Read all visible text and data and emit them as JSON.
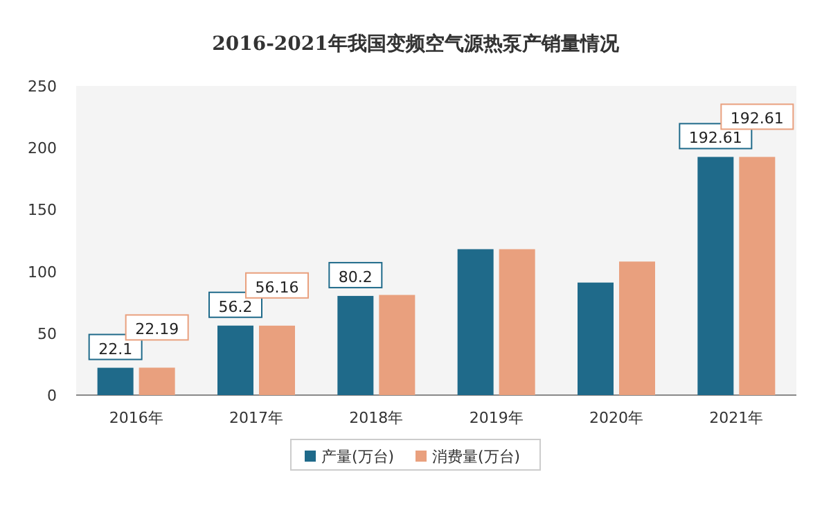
{
  "chart_data": {
    "type": "bar",
    "title": "2016-2021年我国变频空气源热泵产销量情况",
    "categories": [
      "2016年",
      "2017年",
      "2018年",
      "2019年",
      "2020年",
      "2021年"
    ],
    "series": [
      {
        "name": "产量(万台)",
        "color": "#1f6a8a",
        "values": [
          22.1,
          56.2,
          80.2,
          118,
          91,
          192.61
        ],
        "value_labels": [
          "22.1",
          "56.2",
          "80.2",
          null,
          null,
          "192.61"
        ]
      },
      {
        "name": "消费量(万台)",
        "color": "#e9a07e",
        "values": [
          22.19,
          56.16,
          81,
          118,
          108,
          192.61
        ],
        "value_labels": [
          "22.19",
          "56.16",
          null,
          null,
          null,
          "192.61"
        ]
      }
    ],
    "ylim": [
      0,
      250
    ],
    "yticks": [
      0,
      50,
      100,
      150,
      200,
      250
    ],
    "legend": "bottom"
  }
}
